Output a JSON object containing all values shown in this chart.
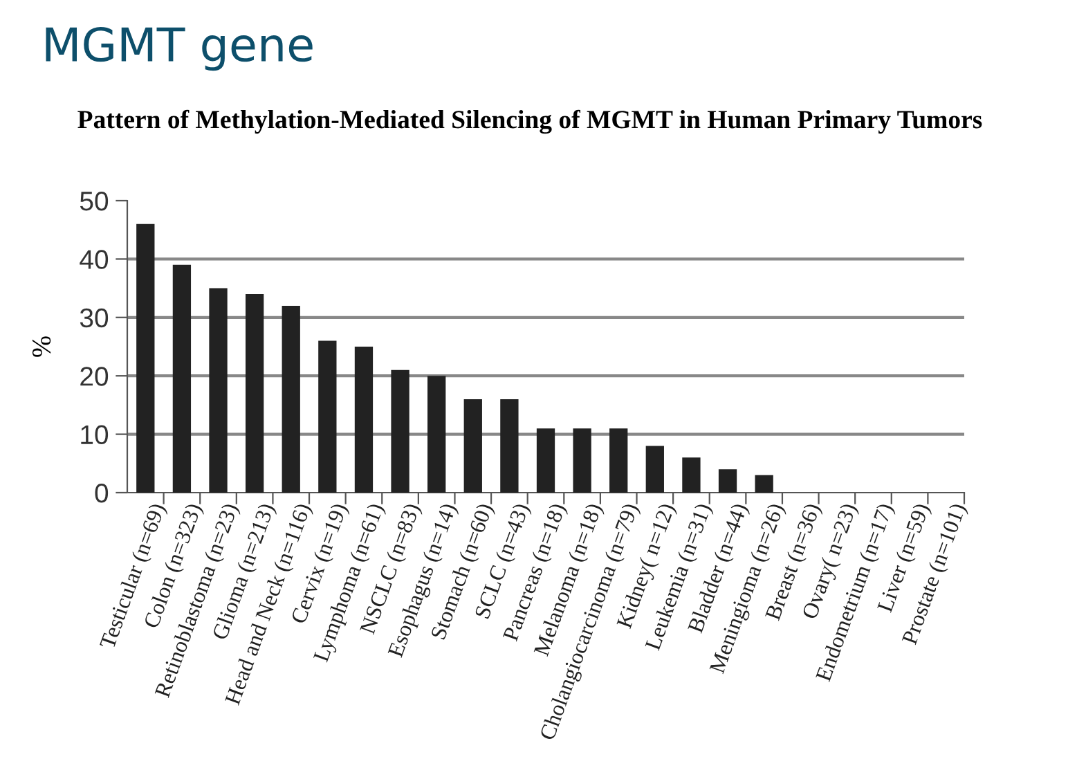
{
  "chart_data": {
    "type": "bar",
    "title": "MGMT gene",
    "subtitle": "Pattern of Methylation-Mediated Silencing of MGMT in Human Primary Tumors",
    "ylabel": "%",
    "categories": [
      "Testicular (n=69)",
      "Colon (n=323)",
      "Retinoblastoma (n=23)",
      "Glioma (n=213)",
      "Head and Neck (n=116)",
      "Cervix (n=19)",
      "Lymphoma (n=61)",
      "NSCLC (n=83)",
      "Esophagus (n=14)",
      "Stomach (n=60)",
      "SCLC (n=43)",
      "Pancreas (n=18)",
      "Melanoma (n=18)",
      "Cholangiocarcinoma (n=79)",
      "Kidney( n=12)",
      "Leukemia (n=31)",
      "Bladder (n=44)",
      "Meningioma (n=26)",
      "Breast (n=36)",
      "Ovary( n=23)",
      "Endometrium (n=17)",
      "Liver (n=59)",
      "Prostate (n=101)"
    ],
    "values": [
      46,
      39,
      35,
      34,
      32,
      26,
      25,
      21,
      20,
      16,
      16,
      11,
      11,
      11,
      8,
      6,
      4,
      3,
      0,
      0,
      0,
      0,
      0
    ],
    "color": "#222222",
    "ylim": [
      0,
      50
    ],
    "yticks": [
      0,
      10,
      20,
      30,
      40,
      50
    ],
    "grid": "y"
  }
}
